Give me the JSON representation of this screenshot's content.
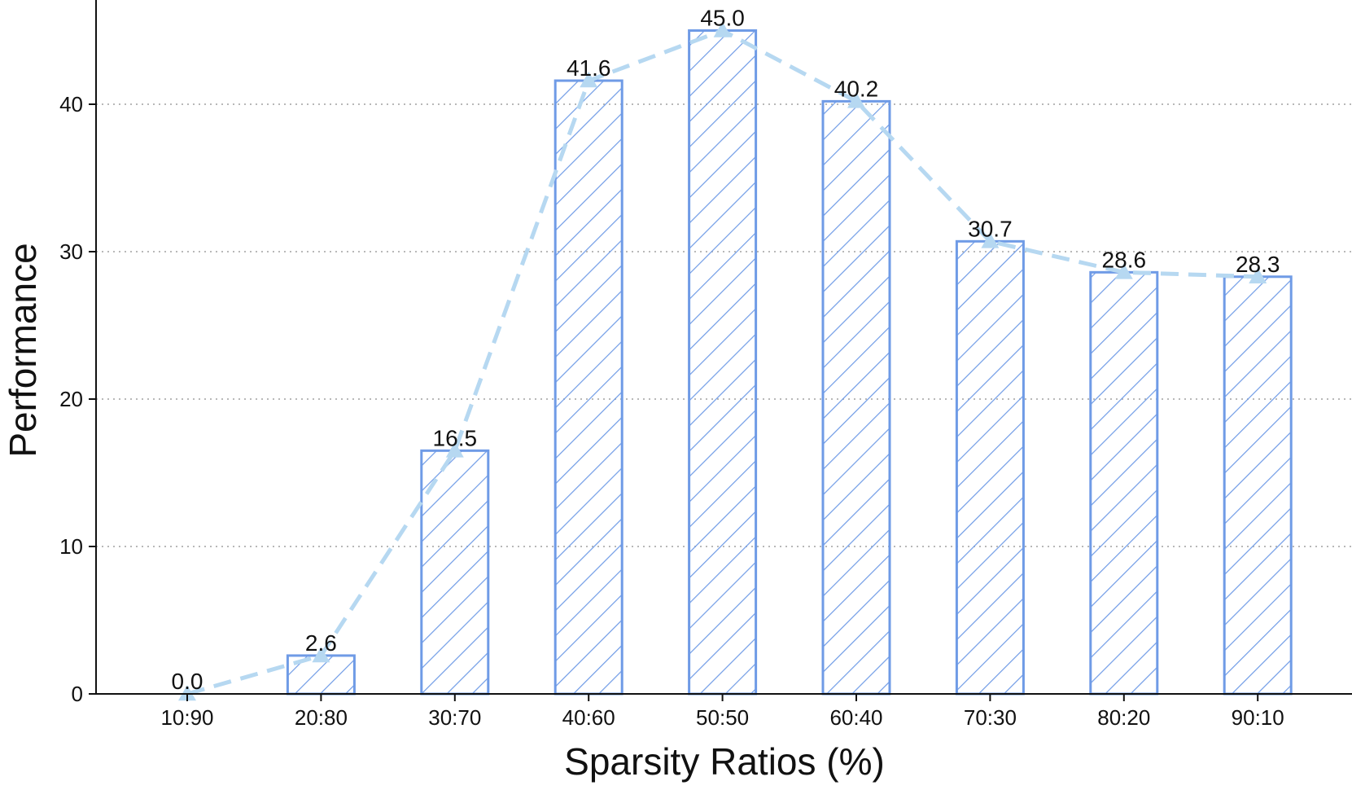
{
  "chart_data": {
    "type": "bar",
    "title": "",
    "xlabel": "Sparsity Ratios (%)",
    "ylabel": "Performance",
    "categories": [
      "10:90",
      "20:80",
      "30:70",
      "40:60",
      "50:50",
      "60:40",
      "70:30",
      "80:20",
      "90:10"
    ],
    "values": [
      0.0,
      2.6,
      16.5,
      41.6,
      45.0,
      40.2,
      30.7,
      28.6,
      28.3
    ],
    "data_labels": [
      "0.0",
      "2.6",
      "16.5",
      "41.6",
      "45.0",
      "40.2",
      "30.7",
      "28.6",
      "28.3"
    ],
    "overlay_line": {
      "style": "dashed",
      "marker": "triangle",
      "values": [
        0.0,
        2.6,
        16.5,
        41.6,
        45.0,
        40.2,
        30.7,
        28.6,
        28.3
      ]
    },
    "ylim": [
      0,
      47
    ],
    "yticks": [
      0,
      10,
      20,
      30,
      40
    ],
    "grid": "horizontal dotted",
    "bar_pattern": "diagonal hatch",
    "colors": {
      "bar_edge": "#6f9be6",
      "hatch": "#6f9be6",
      "line": "#b6d8f1",
      "grid": "#b8b8b8",
      "axis": "#111111"
    }
  }
}
